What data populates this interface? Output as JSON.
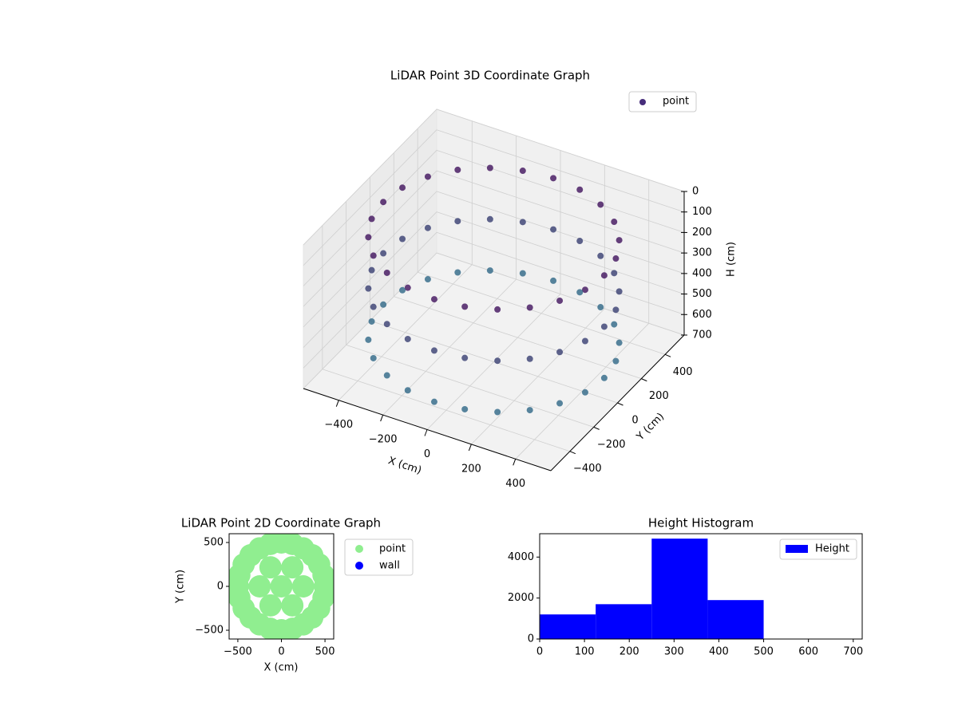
{
  "chart_data": [
    {
      "type": "scatter3d",
      "title": "LiDAR Point 3D Coordinate Graph",
      "xlabel": "X (cm)",
      "ylabel": "Y (cm)",
      "zlabel": "H (cm)",
      "legend": "upper right",
      "grid": true,
      "xlim": [
        -560,
        560
      ],
      "ylim": [
        -560,
        560
      ],
      "zlim": [
        700,
        0
      ],
      "xticks": [
        {
          "value": -400,
          "label": "−400"
        },
        {
          "value": -200,
          "label": "−200"
        },
        0,
        200,
        400
      ],
      "yticks": [
        {
          "value": -400,
          "label": "−400"
        },
        {
          "value": -200,
          "label": "−200"
        },
        0,
        200,
        400
      ],
      "zticks": [
        0,
        100,
        200,
        300,
        400,
        500,
        600,
        700
      ],
      "series": [
        {
          "name": "point",
          "color": "#472d7b",
          "color_range": [
            "#440154",
            "#2a788e"
          ],
          "x": [
            500,
            483,
            433,
            354,
            250,
            129,
            0,
            -129,
            -250,
            -354,
            -433,
            -483,
            -500,
            -483,
            -433,
            -354,
            -250,
            -129,
            0,
            129,
            250,
            354,
            433,
            483,
            500,
            483,
            433,
            354,
            250,
            129,
            0,
            -129,
            -250,
            -354,
            -433,
            -483,
            -500,
            -483,
            -433,
            -354,
            -250,
            -129,
            0,
            129,
            250,
            354,
            433,
            483,
            500,
            483,
            433,
            354,
            250,
            129,
            0,
            -129,
            -250,
            -354,
            -433,
            -483,
            -500,
            -483,
            -433,
            -354,
            -250,
            -129,
            0,
            129,
            250,
            354,
            433,
            483
          ],
          "y": [
            0,
            129,
            250,
            354,
            433,
            483,
            500,
            483,
            433,
            354,
            250,
            129,
            0,
            -129,
            -250,
            -354,
            -433,
            -483,
            -500,
            -483,
            -433,
            -354,
            -250,
            -129,
            0,
            129,
            250,
            354,
            433,
            483,
            500,
            483,
            433,
            354,
            250,
            129,
            0,
            -129,
            -250,
            -354,
            -433,
            -483,
            -500,
            -483,
            -433,
            -354,
            -250,
            -129,
            0,
            129,
            250,
            354,
            433,
            483,
            500,
            483,
            433,
            354,
            250,
            129,
            0,
            -129,
            -250,
            -354,
            -433,
            -483,
            -500,
            -483,
            -433,
            -354,
            -250,
            -129
          ],
          "h": [
            100,
            100,
            100,
            100,
            100,
            100,
            100,
            100,
            100,
            100,
            100,
            100,
            100,
            100,
            100,
            100,
            100,
            100,
            100,
            100,
            100,
            100,
            100,
            100,
            350,
            350,
            350,
            350,
            350,
            350,
            350,
            350,
            350,
            350,
            350,
            350,
            350,
            350,
            350,
            350,
            350,
            350,
            350,
            350,
            350,
            350,
            350,
            350,
            600,
            600,
            600,
            600,
            600,
            600,
            600,
            600,
            600,
            600,
            600,
            600,
            600,
            600,
            600,
            600,
            600,
            600,
            600,
            600,
            600,
            600,
            600,
            600
          ]
        }
      ]
    },
    {
      "type": "scatter",
      "title": "LiDAR Point 2D Coordinate Graph",
      "xlabel": "X (cm)",
      "ylabel": "Y (cm)",
      "legend": "outside right",
      "xlim": [
        -600,
        600
      ],
      "ylim": [
        -600,
        600
      ],
      "xticks": [
        {
          "value": -500,
          "label": "−500"
        },
        0,
        500
      ],
      "yticks": [
        {
          "value": -500,
          "label": "−500"
        },
        0,
        500
      ],
      "series": [
        {
          "name": "point",
          "color": "#90ee90",
          "x": [
            500,
            483,
            433,
            354,
            250,
            129,
            0,
            -129,
            -250,
            -354,
            -433,
            -483,
            -500,
            -483,
            -433,
            -354,
            -250,
            -129,
            0,
            129,
            250,
            354,
            433,
            483,
            250,
            125,
            -125,
            -250,
            -125,
            125,
            0
          ],
          "y": [
            0,
            129,
            250,
            354,
            433,
            483,
            500,
            483,
            433,
            354,
            250,
            129,
            0,
            -129,
            -250,
            -354,
            -433,
            -483,
            -500,
            -483,
            -433,
            -354,
            -250,
            -129,
            0,
            217,
            217,
            0,
            -217,
            -217,
            0
          ]
        },
        {
          "name": "wall",
          "color": "#0000ff",
          "x": [],
          "y": []
        }
      ]
    },
    {
      "type": "histogram",
      "title": "Height Histogram",
      "legend": "upper right",
      "bins": [
        0,
        125,
        250,
        375,
        500
      ],
      "series": [
        {
          "name": "Height",
          "color": "#0000ff",
          "values": [
            1200,
            1700,
            4900,
            1900
          ]
        }
      ],
      "xlim": [
        0,
        720
      ],
      "ylim": [
        0,
        5140
      ],
      "xticks": [
        0,
        100,
        200,
        300,
        400,
        500,
        600,
        700
      ],
      "yticks": [
        0,
        2000,
        4000
      ]
    }
  ]
}
